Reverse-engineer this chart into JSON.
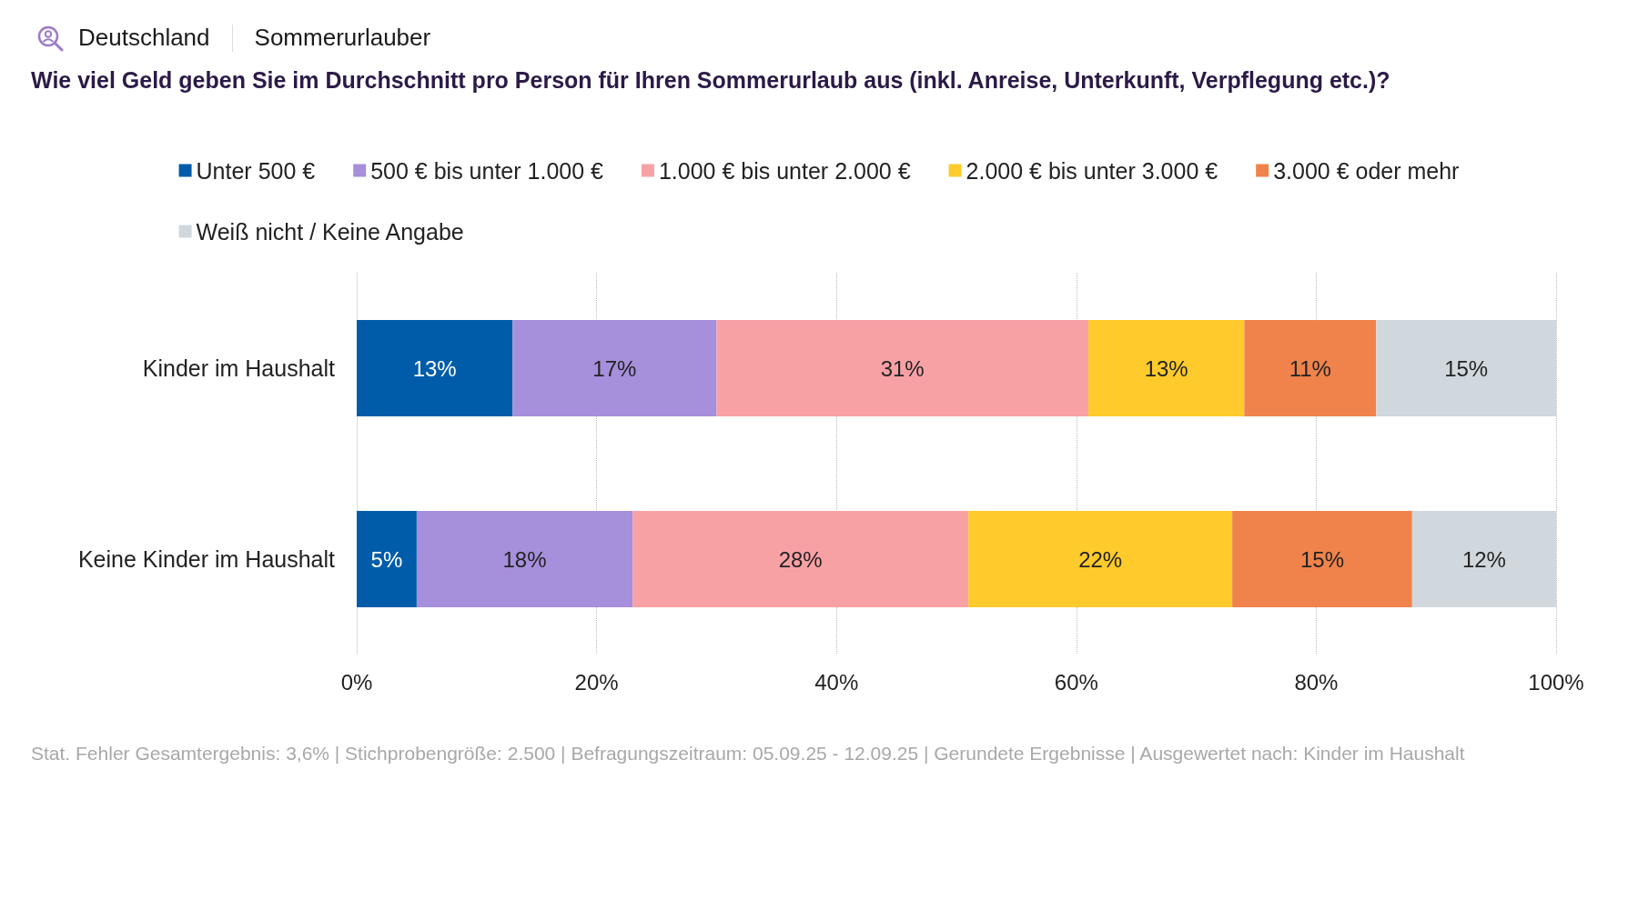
{
  "chart_data": {
    "type": "bar",
    "orientation": "horizontal",
    "stacked": true,
    "title": "Wie viel Geld geben Sie im Durchschnitt pro Person für Ihren Sommerurlaub aus (inkl. Anreise, Unterkunft, Verpflegung etc.)?",
    "annotations": [
      "Deutschland",
      "Sommerurlauber",
      "Stat. Fehler Gesamtergebnis: 3,6% | Stichprobengröße: 2.500 | Befragungszeitraum: 05.09.25 - 12.09.25 | Gerundete Ergebnisse | Ausgewertet nach: Kinder im Haushalt"
    ],
    "categories": [
      "Kinder im Haushalt",
      "Keine Kinder im Haushalt"
    ],
    "series": [
      {
        "name": "Unter 500 €",
        "color": "#005ca9",
        "values": [
          13,
          5
        ],
        "value_labels": [
          "13%",
          "5%"
        ]
      },
      {
        "name": "500 € bis unter 1.000 €",
        "color": "#a68fdb",
        "values": [
          17,
          18
        ],
        "value_labels": [
          "17%",
          "18%"
        ]
      },
      {
        "name": "1.000 € bis unter 2.000 €",
        "color": "#f8a1a5",
        "values": [
          31,
          28
        ],
        "value_labels": [
          "31%",
          "28%"
        ]
      },
      {
        "name": "2.000 € bis unter 3.000 €",
        "color": "#ffca2b",
        "values": [
          13,
          22
        ],
        "value_labels": [
          "13%",
          "22%"
        ]
      },
      {
        "name": "3.000 € oder mehr",
        "color": "#f0834b",
        "values": [
          11,
          15
        ],
        "value_labels": [
          "11%",
          "15%"
        ]
      },
      {
        "name": "Weiß nicht / Keine Angabe",
        "color": "#d0d8de",
        "values": [
          15,
          12
        ],
        "value_labels": [
          "15%",
          "12%"
        ]
      }
    ],
    "xlim": [
      0,
      100
    ],
    "xticks": [
      {
        "value": 0,
        "label": "0%"
      },
      {
        "value": 20,
        "label": "20%"
      },
      {
        "value": 40,
        "label": "40%"
      },
      {
        "value": 60,
        "label": "60%"
      },
      {
        "value": 80,
        "label": "80%"
      },
      {
        "value": 100,
        "label": "100%"
      }
    ],
    "grid": "x",
    "legend": "top"
  }
}
